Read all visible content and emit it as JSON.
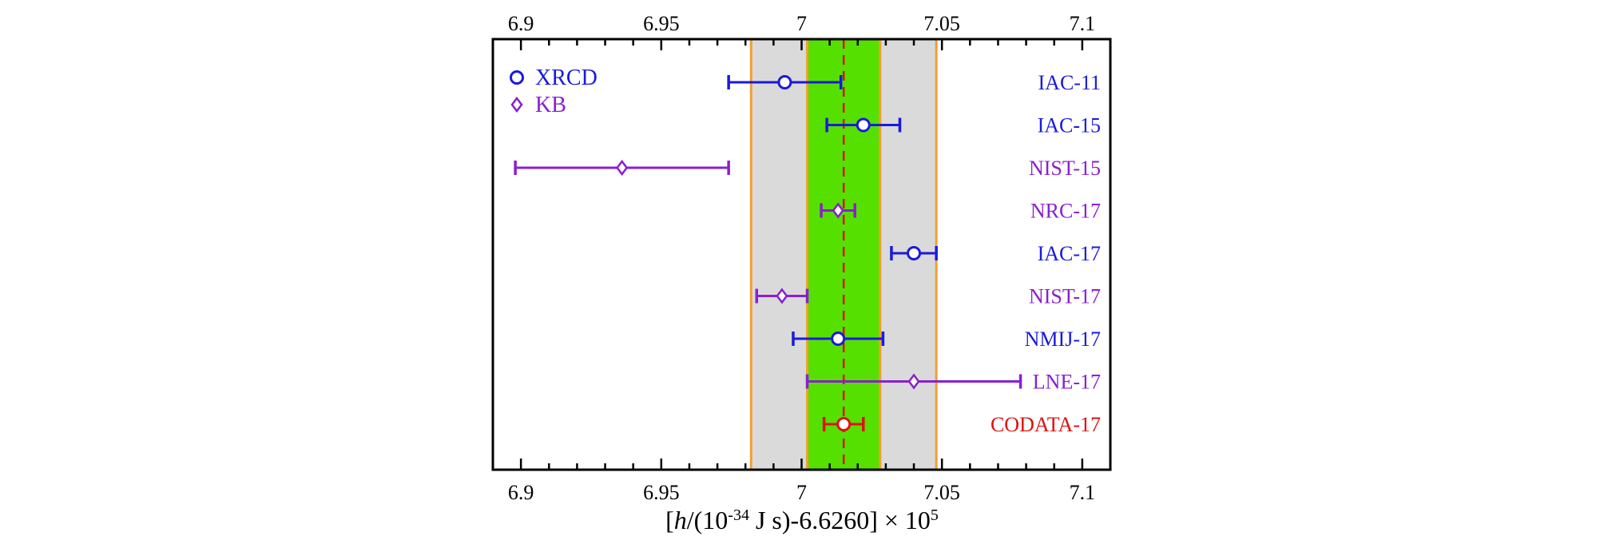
{
  "chart_data": {
    "type": "scatter",
    "title": "",
    "xlabel": {
      "pre": "[",
      "italic": "h",
      "mid1": "/(10",
      "sup1": "-34",
      "mid2": " J s)-6.6260] × 10",
      "sup2": "5"
    },
    "ylabel": "",
    "xlim": [
      6.89,
      7.11
    ],
    "x_ticks": [
      6.9,
      6.95,
      7,
      7.05,
      7.1
    ],
    "x_tick_labels": [
      "6.9",
      "6.95",
      "7",
      "7.05",
      "7.1"
    ],
    "grid": false,
    "legend": {
      "placement": "top-left",
      "entries": [
        {
          "label": "XRCD",
          "marker": "circle",
          "color": "#1a1adc"
        },
        {
          "label": "KB",
          "marker": "diamond",
          "color": "#8a1fd0"
        }
      ]
    },
    "bands": [
      {
        "x0": 6.982,
        "x1": 7.048,
        "color": "#dadada",
        "edge": "#f0a030"
      },
      {
        "x0": 7.002,
        "x1": 7.028,
        "color": "#55e000",
        "edge": "#f0a030"
      }
    ],
    "reference_line": {
      "x": 7.015,
      "color": "#e01010",
      "style": "dashed"
    },
    "points": [
      {
        "label": "IAC-11",
        "method": "XRCD",
        "x": 6.994,
        "xerr_low": 6.974,
        "xerr_high": 7.014,
        "color": "#1a1adc"
      },
      {
        "label": "IAC-15",
        "method": "XRCD",
        "x": 7.022,
        "xerr_low": 7.009,
        "xerr_high": 7.035,
        "color": "#1a1adc"
      },
      {
        "label": "NIST-15",
        "method": "KB",
        "x": 6.936,
        "xerr_low": 6.898,
        "xerr_high": 6.974,
        "color": "#8a1fd0"
      },
      {
        "label": "NRC-17",
        "method": "KB",
        "x": 7.013,
        "xerr_low": 7.007,
        "xerr_high": 7.019,
        "color": "#8a1fd0"
      },
      {
        "label": "IAC-17",
        "method": "XRCD",
        "x": 7.04,
        "xerr_low": 7.032,
        "xerr_high": 7.048,
        "color": "#1a1adc"
      },
      {
        "label": "NIST-17",
        "method": "KB",
        "x": 6.993,
        "xerr_low": 6.984,
        "xerr_high": 7.002,
        "color": "#8a1fd0"
      },
      {
        "label": "NMIJ-17",
        "method": "XRCD",
        "x": 7.013,
        "xerr_low": 6.997,
        "xerr_high": 7.029,
        "color": "#1a1adc"
      },
      {
        "label": "LNE-17",
        "method": "KB",
        "x": 7.04,
        "xerr_low": 7.002,
        "xerr_high": 7.078,
        "color": "#8a1fd0"
      },
      {
        "label": "CODATA-17",
        "method": "CODATA",
        "x": 7.015,
        "xerr_low": 7.008,
        "xerr_high": 7.022,
        "color": "#e01010"
      }
    ]
  }
}
